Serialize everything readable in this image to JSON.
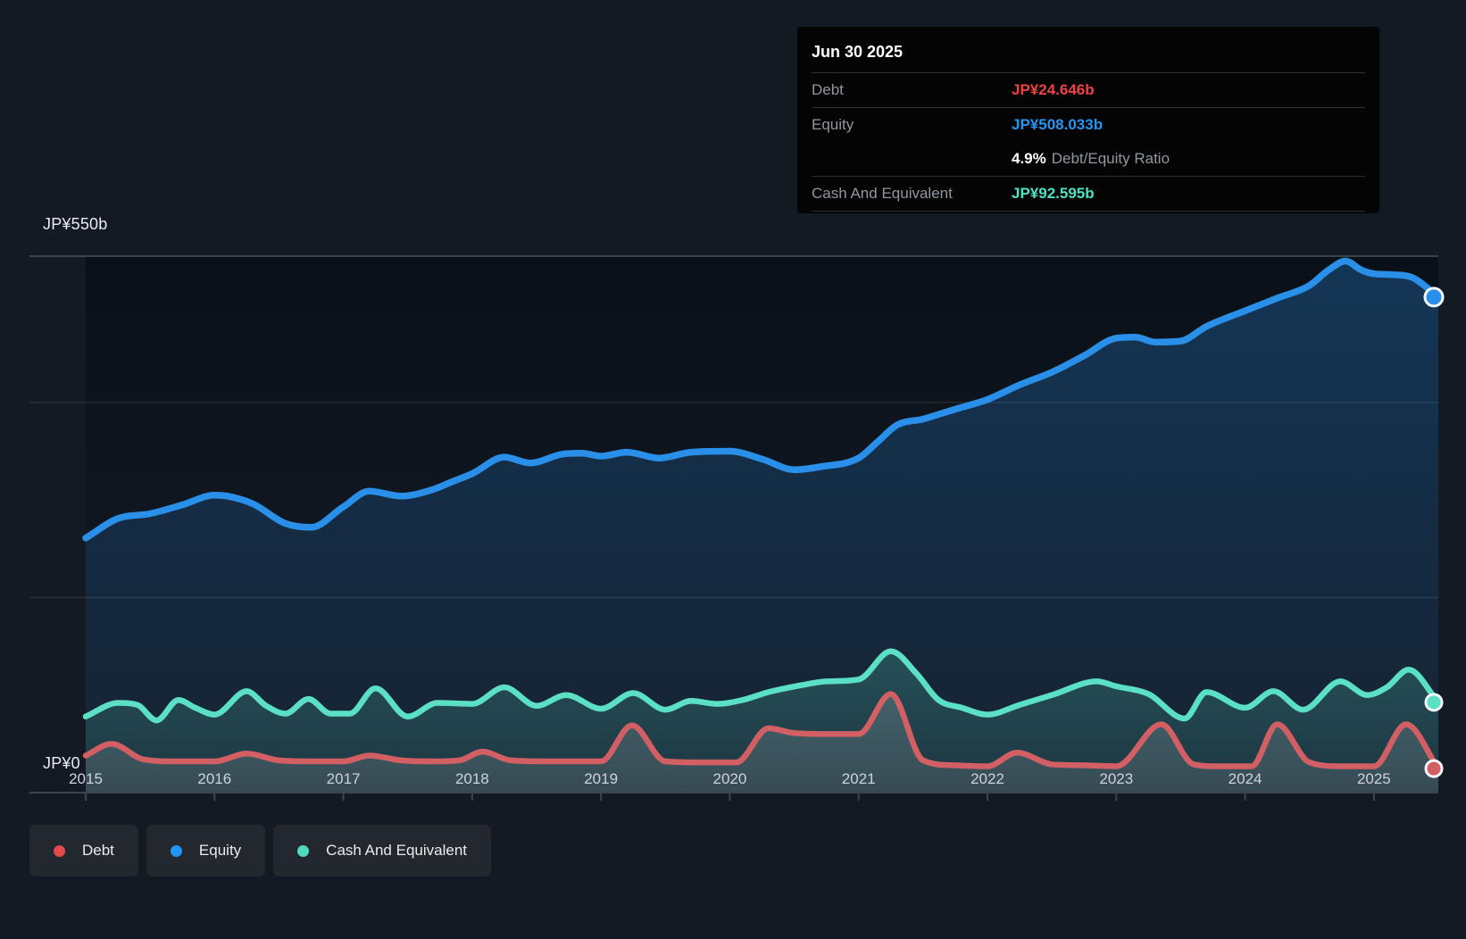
{
  "page": {
    "background": "#141a23"
  },
  "tooltip": {
    "date": "Jun 30 2025",
    "rows": {
      "debt": {
        "label": "Debt",
        "value": "JP¥24.646b",
        "color": "#ef4146"
      },
      "equity": {
        "label": "Equity",
        "value": "JP¥508.033b",
        "color": "#2196f3"
      },
      "ratio": {
        "value": "4.9%",
        "label": "Debt/Equity Ratio"
      },
      "cash": {
        "label": "Cash And Equivalent",
        "value": "JP¥92.595b",
        "color": "#4be3c4"
      }
    }
  },
  "y_axis": {
    "top": "JP¥550b",
    "zero": "JP¥0"
  },
  "legend": {
    "items": [
      {
        "key": "debt",
        "label": "Debt",
        "color": "#e5484d"
      },
      {
        "key": "equity",
        "label": "Equity",
        "color": "#2196f3"
      },
      {
        "key": "cash",
        "label": "Cash And Equivalent",
        "color": "#4fd9bf"
      }
    ]
  },
  "chart_data": {
    "type": "area",
    "x_unit": "decimal_year",
    "x_range": [
      2015.0,
      2025.5
    ],
    "y_range": [
      0,
      550
    ],
    "y_unit": "JP¥ billions",
    "y_gridlines_b": [
      550,
      400,
      200,
      0
    ],
    "y_axis_labels": {
      "top": "JP¥550b",
      "zero": "JP¥0"
    },
    "x_ticks": [
      2015,
      2016,
      2017,
      2018,
      2019,
      2020,
      2021,
      2022,
      2023,
      2024,
      2025
    ],
    "grid": true,
    "legend_position": "bottom-left",
    "series": [
      {
        "key": "equity",
        "name": "Equity",
        "color": "#2a8fe8",
        "end_value_b": 508.033,
        "end_label": "JP¥508.033b",
        "points": [
          [
            2015.0,
            261
          ],
          [
            2015.25,
            281
          ],
          [
            2015.5,
            286
          ],
          [
            2015.75,
            295
          ],
          [
            2016.0,
            305
          ],
          [
            2016.1,
            304
          ],
          [
            2016.3,
            296
          ],
          [
            2016.55,
            276
          ],
          [
            2016.75,
            272
          ],
          [
            2017.0,
            293
          ],
          [
            2017.2,
            309
          ],
          [
            2017.45,
            304
          ],
          [
            2017.7,
            311
          ],
          [
            2017.85,
            319
          ],
          [
            2018.0,
            327
          ],
          [
            2018.25,
            344
          ],
          [
            2018.45,
            338
          ],
          [
            2018.7,
            347
          ],
          [
            2018.85,
            348
          ],
          [
            2019.0,
            345
          ],
          [
            2019.2,
            349
          ],
          [
            2019.45,
            343
          ],
          [
            2019.7,
            349
          ],
          [
            2020.0,
            350
          ],
          [
            2020.25,
            342
          ],
          [
            2020.5,
            331
          ],
          [
            2020.7,
            334
          ],
          [
            2021.0,
            343
          ],
          [
            2021.15,
            360
          ],
          [
            2021.3,
            377
          ],
          [
            2021.5,
            383
          ],
          [
            2021.65,
            389
          ],
          [
            2021.8,
            395
          ],
          [
            2022.0,
            403
          ],
          [
            2022.25,
            418
          ],
          [
            2022.5,
            431
          ],
          [
            2022.75,
            448
          ],
          [
            2023.0,
            466
          ],
          [
            2023.15,
            467
          ],
          [
            2023.3,
            462
          ],
          [
            2023.5,
            463
          ],
          [
            2023.7,
            478
          ],
          [
            2024.0,
            494
          ],
          [
            2024.25,
            507
          ],
          [
            2024.5,
            520
          ],
          [
            2024.65,
            536
          ],
          [
            2024.78,
            545
          ],
          [
            2024.9,
            536
          ],
          [
            2025.0,
            532
          ],
          [
            2025.15,
            531
          ],
          [
            2025.3,
            528
          ],
          [
            2025.5,
            508.033
          ]
        ]
      },
      {
        "key": "cash",
        "name": "Cash And Equivalent",
        "color": "#5ce0c5",
        "end_value_b": 92.595,
        "end_label": "JP¥92.595b",
        "points": [
          [
            2015.0,
            78
          ],
          [
            2015.25,
            92
          ],
          [
            2015.4,
            90
          ],
          [
            2015.55,
            74
          ],
          [
            2015.72,
            95
          ],
          [
            2015.85,
            87
          ],
          [
            2016.0,
            80
          ],
          [
            2016.25,
            104
          ],
          [
            2016.4,
            89
          ],
          [
            2016.55,
            81
          ],
          [
            2016.73,
            96
          ],
          [
            2016.9,
            81
          ],
          [
            2017.05,
            81
          ],
          [
            2017.25,
            107
          ],
          [
            2017.5,
            78
          ],
          [
            2017.73,
            92
          ],
          [
            2018.0,
            91
          ],
          [
            2018.25,
            108
          ],
          [
            2018.5,
            89
          ],
          [
            2018.73,
            100
          ],
          [
            2019.0,
            86
          ],
          [
            2019.25,
            102
          ],
          [
            2019.5,
            85
          ],
          [
            2019.7,
            94
          ],
          [
            2019.9,
            91
          ],
          [
            2020.1,
            95
          ],
          [
            2020.3,
            103
          ],
          [
            2020.55,
            110
          ],
          [
            2020.75,
            114
          ],
          [
            2021.0,
            116
          ],
          [
            2021.25,
            145
          ],
          [
            2021.45,
            122
          ],
          [
            2021.62,
            95
          ],
          [
            2021.8,
            87
          ],
          [
            2022.0,
            80
          ],
          [
            2022.25,
            90
          ],
          [
            2022.5,
            100
          ],
          [
            2022.85,
            114
          ],
          [
            2023.0,
            109
          ],
          [
            2023.25,
            101
          ],
          [
            2023.53,
            76
          ],
          [
            2023.7,
            103
          ],
          [
            2024.0,
            87
          ],
          [
            2024.22,
            104
          ],
          [
            2024.45,
            85
          ],
          [
            2024.74,
            114
          ],
          [
            2024.95,
            100
          ],
          [
            2025.1,
            108
          ],
          [
            2025.27,
            126
          ],
          [
            2025.5,
            92.595
          ]
        ]
      },
      {
        "key": "debt",
        "name": "Debt",
        "color": "#d15f63",
        "end_value_b": 24.646,
        "end_label": "JP¥24.646b",
        "points": [
          [
            2015.0,
            38
          ],
          [
            2015.2,
            50
          ],
          [
            2015.45,
            34
          ],
          [
            2015.7,
            32
          ],
          [
            2016.0,
            32
          ],
          [
            2016.25,
            40
          ],
          [
            2016.5,
            33
          ],
          [
            2016.75,
            32
          ],
          [
            2017.0,
            32
          ],
          [
            2017.2,
            38
          ],
          [
            2017.45,
            33
          ],
          [
            2017.7,
            32
          ],
          [
            2017.9,
            33
          ],
          [
            2018.08,
            42
          ],
          [
            2018.3,
            33
          ],
          [
            2018.6,
            32
          ],
          [
            2019.0,
            32
          ],
          [
            2019.24,
            69
          ],
          [
            2019.5,
            32
          ],
          [
            2019.75,
            31
          ],
          [
            2020.05,
            31
          ],
          [
            2020.3,
            66
          ],
          [
            2020.5,
            61
          ],
          [
            2020.75,
            60
          ],
          [
            2021.0,
            60
          ],
          [
            2021.25,
            101
          ],
          [
            2021.5,
            33
          ],
          [
            2021.75,
            28
          ],
          [
            2022.0,
            27
          ],
          [
            2022.23,
            41
          ],
          [
            2022.5,
            29
          ],
          [
            2022.75,
            28
          ],
          [
            2023.0,
            27
          ],
          [
            2023.35,
            70
          ],
          [
            2023.6,
            29
          ],
          [
            2023.8,
            27
          ],
          [
            2024.05,
            27
          ],
          [
            2024.25,
            70
          ],
          [
            2024.5,
            31
          ],
          [
            2024.75,
            27
          ],
          [
            2025.0,
            27
          ],
          [
            2025.25,
            70
          ],
          [
            2025.5,
            24.646
          ]
        ]
      }
    ]
  }
}
